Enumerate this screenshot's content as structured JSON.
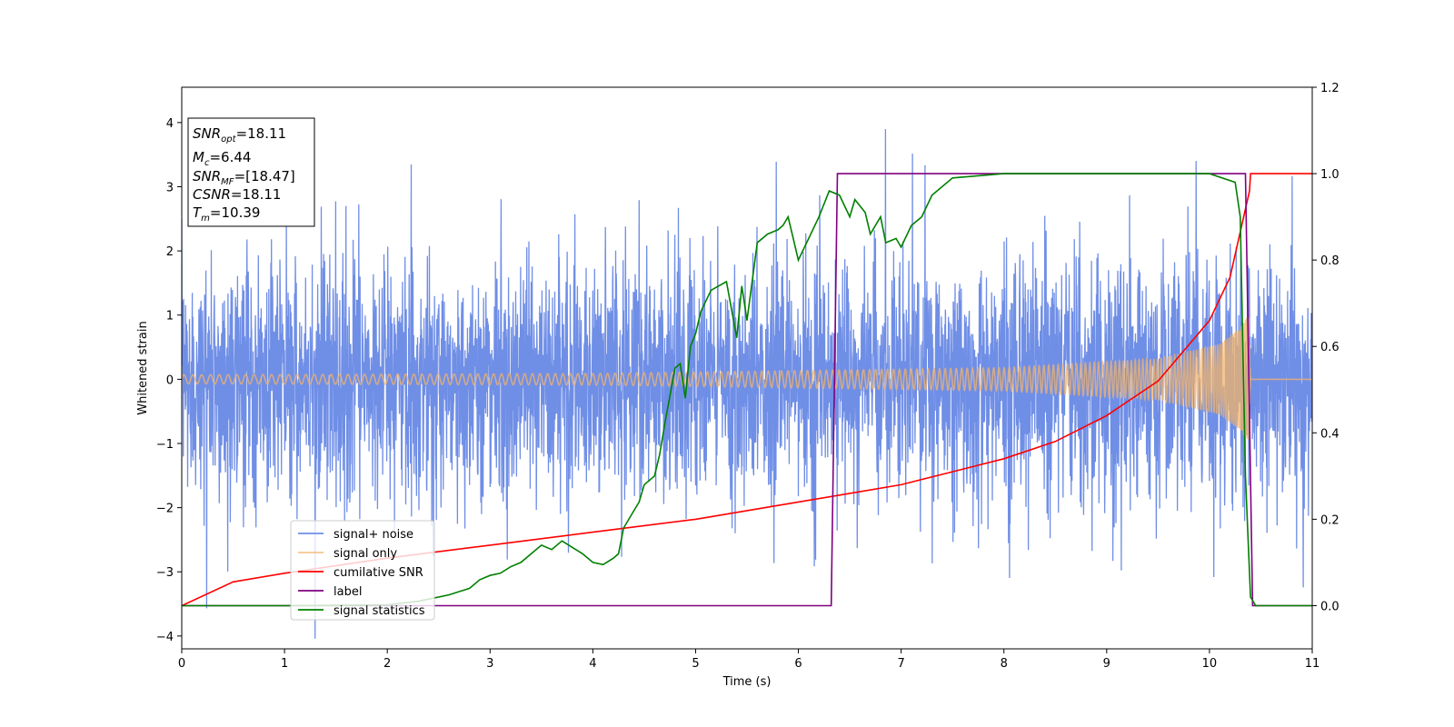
{
  "chart_data": {
    "type": "line",
    "title": "",
    "xlabel": "Time (s)",
    "ylabel": "Whitened strain",
    "ylabel_right": "",
    "xlim": [
      0,
      11
    ],
    "ylim": [
      -4.2,
      4.55
    ],
    "ylim_right": [
      -0.1,
      1.2
    ],
    "xticks": [
      0,
      1,
      2,
      3,
      4,
      5,
      6,
      7,
      8,
      9,
      10,
      11
    ],
    "yticks": [
      4,
      3,
      2,
      1,
      0,
      -1,
      -2,
      -3,
      -4
    ],
    "yticks_right": [
      1.2,
      1.0,
      0.8,
      0.6,
      0.4,
      0.2,
      0.0
    ],
    "grid": false,
    "legend_position": "lower-left",
    "info_box": {
      "snr_opt": {
        "label": "SNR",
        "sub": "opt",
        "value": "=18.11"
      },
      "mc": {
        "label": "M",
        "sub": "c",
        "value": "=6.44"
      },
      "snr_mf": {
        "label": "SNR",
        "sub": "MF",
        "value": "=[18.47]"
      },
      "csnr": {
        "label": "CSNR",
        "value": "=18.11"
      },
      "tm": {
        "label": "T",
        "sub": "m",
        "value": "=10.39"
      }
    },
    "series": [
      {
        "name": "signal+ noise",
        "color": "#6f8ee6",
        "axis": "left",
        "style": "noise",
        "noise_std": 0.9,
        "envelope_ref": "signal only"
      },
      {
        "name": "signal only",
        "color": "#f2b36b",
        "axis": "left",
        "style": "chirp",
        "envelope": {
          "t": [
            0,
            4,
            8,
            9.5,
            10.1,
            10.3,
            10.38,
            10.4,
            11
          ],
          "amp": [
            0.07,
            0.09,
            0.18,
            0.32,
            0.55,
            0.8,
            1.0,
            0,
            0
          ]
        }
      },
      {
        "name": "cumilative SNR",
        "color": "#ff0000",
        "axis": "right",
        "x": [
          0,
          0.5,
          1,
          2,
          3,
          4,
          5,
          6,
          6.5,
          7,
          7.5,
          8,
          8.5,
          9,
          9.5,
          10,
          10.2,
          10.39,
          10.4,
          11
        ],
        "y": [
          0.0,
          0.055,
          0.075,
          0.11,
          0.14,
          0.17,
          0.2,
          0.24,
          0.26,
          0.28,
          0.31,
          0.34,
          0.38,
          0.44,
          0.52,
          0.66,
          0.76,
          0.96,
          1.0,
          1.0
        ]
      },
      {
        "name": "label",
        "color": "#800080",
        "axis": "right",
        "x": [
          0,
          6.32,
          6.38,
          10.35,
          10.42,
          11
        ],
        "y": [
          0.0,
          0.0,
          1.0,
          1.0,
          0.0,
          0.0
        ]
      },
      {
        "name": "signal statistics",
        "color": "#008000",
        "axis": "right",
        "x": [
          0,
          1,
          2,
          2.3,
          2.6,
          2.8,
          2.9,
          3.0,
          3.1,
          3.2,
          3.3,
          3.4,
          3.5,
          3.6,
          3.7,
          3.8,
          3.9,
          4.0,
          4.1,
          4.2,
          4.25,
          4.3,
          4.4,
          4.45,
          4.5,
          4.6,
          4.65,
          4.7,
          4.8,
          4.85,
          4.9,
          4.95,
          5.0,
          5.05,
          5.15,
          5.3,
          5.4,
          5.45,
          5.5,
          5.6,
          5.7,
          5.8,
          5.85,
          5.9,
          5.95,
          6.0,
          6.1,
          6.2,
          6.3,
          6.4,
          6.5,
          6.55,
          6.65,
          6.7,
          6.8,
          6.85,
          6.95,
          7.0,
          7.1,
          7.2,
          7.3,
          7.5,
          8.0,
          9.0,
          10.0,
          10.25,
          10.3,
          10.35,
          10.4,
          10.45,
          10.5,
          11
        ],
        "y": [
          0.0,
          0.0,
          0.002,
          0.01,
          0.025,
          0.04,
          0.06,
          0.07,
          0.075,
          0.09,
          0.1,
          0.12,
          0.14,
          0.13,
          0.15,
          0.135,
          0.12,
          0.1,
          0.095,
          0.11,
          0.12,
          0.18,
          0.22,
          0.24,
          0.28,
          0.3,
          0.35,
          0.42,
          0.55,
          0.56,
          0.48,
          0.6,
          0.63,
          0.68,
          0.73,
          0.75,
          0.62,
          0.74,
          0.66,
          0.84,
          0.86,
          0.87,
          0.88,
          0.9,
          0.85,
          0.8,
          0.85,
          0.9,
          0.96,
          0.95,
          0.9,
          0.94,
          0.91,
          0.86,
          0.9,
          0.84,
          0.85,
          0.83,
          0.88,
          0.9,
          0.95,
          0.99,
          1.0,
          1.0,
          1.0,
          0.98,
          0.9,
          0.3,
          0.02,
          0.0,
          0.0,
          0.0
        ]
      }
    ]
  }
}
